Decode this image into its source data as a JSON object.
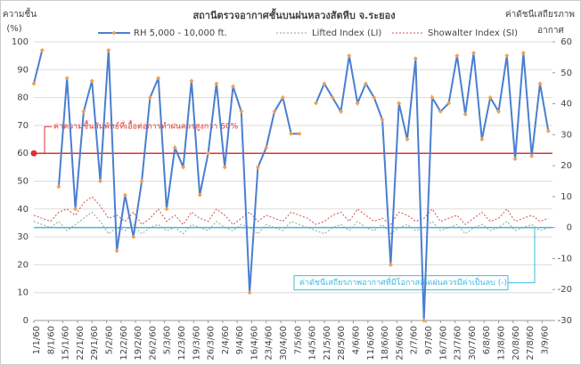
{
  "chart_data": {
    "type": "line",
    "title": "สถานีตรวจอากาศชั้นบนฝนหลวงสัตหีบ  จ.ระยอง",
    "y_label": [
      "ความชื้น",
      "(%)"
    ],
    "y2_label": [
      "ค่าดัชนีเสถียรภาพ",
      "อากาศ"
    ],
    "x": [
      0,
      4,
      8,
      12,
      16,
      20,
      24,
      28,
      32,
      36,
      40,
      44,
      48,
      52,
      56,
      60,
      64,
      68,
      72,
      76,
      80,
      84,
      88,
      92,
      96,
      100,
      104,
      108,
      112,
      116,
      120,
      124,
      128,
      132,
      136,
      140,
      144,
      148,
      152,
      156,
      160,
      164,
      168,
      172,
      176,
      180,
      184,
      188,
      192,
      196,
      200,
      204,
      208,
      212,
      216,
      220,
      224,
      228,
      232,
      236,
      240,
      244,
      248
    ],
    "xlim": [
      0,
      250
    ],
    "xticks": [
      {
        "value": 0,
        "label": "1/1/60"
      },
      {
        "value": 7,
        "label": "8/1/60"
      },
      {
        "value": 14,
        "label": "15/1/60"
      },
      {
        "value": 21,
        "label": "22/1/60"
      },
      {
        "value": 28,
        "label": "29/1/60"
      },
      {
        "value": 35,
        "label": "5/2/60"
      },
      {
        "value": 42,
        "label": "12/2/60"
      },
      {
        "value": 49,
        "label": "19/2/60"
      },
      {
        "value": 56,
        "label": "26/2/60"
      },
      {
        "value": 63,
        "label": "5/3/60"
      },
      {
        "value": 70,
        "label": "12/3/60"
      },
      {
        "value": 77,
        "label": "19/3/60"
      },
      {
        "value": 84,
        "label": "26/3/60"
      },
      {
        "value": 91,
        "label": "2/4/60"
      },
      {
        "value": 98,
        "label": "9/4/60"
      },
      {
        "value": 105,
        "label": "16/4/60"
      },
      {
        "value": 112,
        "label": "23/4/60"
      },
      {
        "value": 119,
        "label": "30/4/60"
      },
      {
        "value": 126,
        "label": "7/5/60"
      },
      {
        "value": 133,
        "label": "14/5/60"
      },
      {
        "value": 140,
        "label": "21/5/60"
      },
      {
        "value": 147,
        "label": "28/5/60"
      },
      {
        "value": 154,
        "label": "4/6/60"
      },
      {
        "value": 161,
        "label": "11/6/60"
      },
      {
        "value": 168,
        "label": "18/6/60"
      },
      {
        "value": 175,
        "label": "25/6/60"
      },
      {
        "value": 182,
        "label": "2/7/60"
      },
      {
        "value": 189,
        "label": "9/7/60"
      },
      {
        "value": 196,
        "label": "16/7/60"
      },
      {
        "value": 203,
        "label": "23/7/60"
      },
      {
        "value": 210,
        "label": "30/7/60"
      },
      {
        "value": 217,
        "label": "6/8/60"
      },
      {
        "value": 224,
        "label": "13/8/60"
      },
      {
        "value": 231,
        "label": "20/8/60"
      },
      {
        "value": 238,
        "label": "27/8/60"
      },
      {
        "value": 245,
        "label": "3/9/60"
      }
    ],
    "ylim": [
      0,
      100
    ],
    "yticks": [
      0,
      10,
      20,
      30,
      40,
      50,
      60,
      70,
      80,
      90,
      100
    ],
    "y2lim": [
      -30,
      60
    ],
    "y2ticks": [
      -30,
      -20,
      -10,
      0,
      10,
      20,
      30,
      40,
      50,
      60
    ],
    "grid": true,
    "series": [
      {
        "name": "RH 5,000 - 10,000 ft.",
        "color": "#4a7fd0",
        "marker_color": "#f0a050",
        "axis": "y",
        "values": [
          85,
          97,
          null,
          48,
          87,
          40,
          75,
          86,
          50,
          97,
          25,
          45,
          30,
          50,
          80,
          87,
          40,
          62,
          55,
          86,
          45,
          60,
          85,
          55,
          84,
          75,
          10,
          55,
          62,
          75,
          80,
          67,
          67,
          null,
          78,
          85,
          80,
          75,
          95,
          78,
          85,
          80,
          72,
          20,
          78,
          65,
          94,
          0,
          80,
          75,
          78,
          95,
          74,
          96,
          65,
          80,
          75,
          95,
          58,
          96,
          59,
          85,
          68
        ]
      },
      {
        "name": "Lifted Index (LI)",
        "color": "#8aa88a",
        "axis": "y2",
        "values": [
          2,
          1,
          0,
          2,
          -1,
          1,
          3,
          5,
          2,
          -2,
          0,
          -1,
          1,
          -2,
          0,
          1,
          -1,
          0,
          -2,
          1,
          0,
          -1,
          2,
          0,
          -1,
          1,
          0,
          -2,
          1,
          0,
          -1,
          2,
          1,
          0,
          -1,
          -2,
          0,
          1,
          -1,
          2,
          0,
          -1,
          1,
          -2,
          0,
          1,
          -1,
          0,
          2,
          -1,
          0,
          1,
          -2,
          0,
          1,
          -1,
          0,
          2,
          -1,
          0,
          1,
          -1,
          0
        ]
      },
      {
        "name": "Showalter Index (SI)",
        "color": "#d05050",
        "axis": "y2",
        "values": [
          4,
          3,
          2,
          5,
          6,
          4,
          8,
          10,
          7,
          3,
          4,
          2,
          5,
          1,
          3,
          6,
          2,
          4,
          1,
          5,
          3,
          2,
          6,
          4,
          1,
          3,
          5,
          2,
          4,
          3,
          2,
          5,
          4,
          3,
          1,
          2,
          4,
          5,
          2,
          6,
          4,
          2,
          3,
          1,
          5,
          4,
          2,
          3,
          6,
          2,
          3,
          4,
          1,
          3,
          5,
          2,
          3,
          6,
          2,
          3,
          4,
          2,
          3
        ]
      }
    ],
    "reference_lines": [
      {
        "value": 60,
        "axis": "y",
        "color": "#e03030",
        "annotation": "ค่าความชื้นสัมพัทธ์ที่เอื้อต่อการทำฝนควรสูงกว่า 60%"
      },
      {
        "value": 0,
        "axis": "y2",
        "color": "#40b8e0",
        "annotation": "ค่าดัชนีเสถียรภาพอากาศที่มีโอกาสเกิดฝนควรมีค่าเป็นลบ (-)"
      }
    ]
  }
}
